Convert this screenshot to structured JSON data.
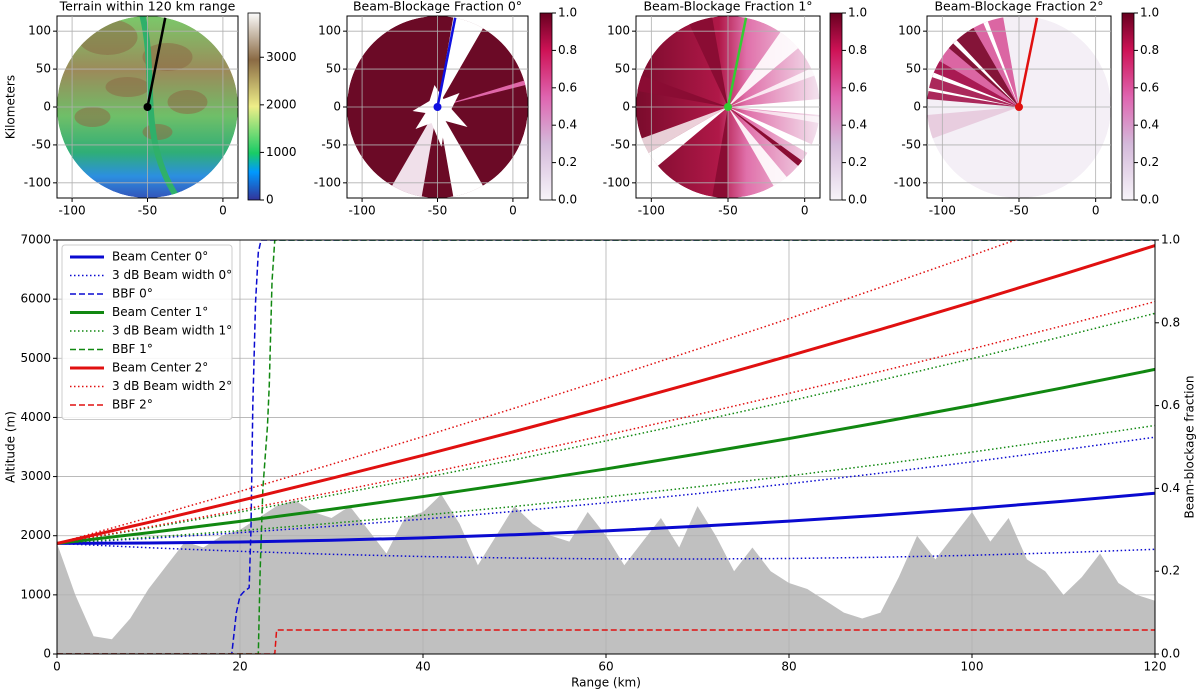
{
  "chart_data": [
    {
      "type": "map",
      "title": "Terrain within 120 km range",
      "ylabel": "Kilometers",
      "xlim": [
        -110,
        10
      ],
      "ylim": [
        -120,
        120
      ],
      "xticks": [
        -100,
        -50,
        0
      ],
      "yticks": [
        -100,
        -50,
        0,
        50,
        100
      ],
      "grid": true,
      "radar": [
        -50,
        0
      ],
      "ray_end": [
        -38,
        120
      ],
      "ray_color": "#000000",
      "colormap": "terrain",
      "colorbar": {
        "lim": [
          0,
          3930
        ],
        "ticks": [
          0,
          1000,
          2000,
          3000
        ]
      }
    },
    {
      "type": "map",
      "title": "Beam-Blockage Fraction 0°",
      "xlim": [
        -110,
        10
      ],
      "ylim": [
        -120,
        120
      ],
      "xticks": [
        -100,
        -50,
        0
      ],
      "yticks": [
        -100,
        -50,
        0,
        50,
        100
      ],
      "grid": true,
      "radar": [
        -50,
        0
      ],
      "ray_end": [
        -38,
        120
      ],
      "ray_color": "#1010e0",
      "colormap": "PuRd",
      "colorbar": {
        "lim": [
          0,
          1
        ],
        "ticks": [
          {
            "value": 0,
            "label": "0.0"
          },
          {
            "value": 0.2,
            "label": "0.2"
          },
          {
            "value": 0.4,
            "label": "0.4"
          },
          {
            "value": 0.6,
            "label": "0.6"
          },
          {
            "value": 0.8,
            "label": "0.8"
          },
          {
            "value": 1,
            "label": "1.0"
          }
        ]
      }
    },
    {
      "type": "map",
      "title": "Beam-Blockage Fraction 1°",
      "xlim": [
        -110,
        10
      ],
      "ylim": [
        -120,
        120
      ],
      "xticks": [
        -100,
        -50,
        0
      ],
      "yticks": [
        -100,
        -50,
        0,
        50,
        100
      ],
      "grid": true,
      "radar": [
        -50,
        0
      ],
      "ray_end": [
        -38,
        120
      ],
      "ray_color": "#33cc33",
      "colormap": "PuRd",
      "colorbar": {
        "lim": [
          0,
          1
        ],
        "ticks": [
          {
            "value": 0,
            "label": "0.0"
          },
          {
            "value": 0.2,
            "label": "0.2"
          },
          {
            "value": 0.4,
            "label": "0.4"
          },
          {
            "value": 0.6,
            "label": "0.6"
          },
          {
            "value": 0.8,
            "label": "0.8"
          },
          {
            "value": 1,
            "label": "1.0"
          }
        ]
      }
    },
    {
      "type": "map",
      "title": "Beam-Blockage Fraction 2°",
      "xlim": [
        -110,
        10
      ],
      "ylim": [
        -120,
        120
      ],
      "xticks": [
        -100,
        -50,
        0
      ],
      "yticks": [
        -100,
        -50,
        0,
        50,
        100
      ],
      "grid": true,
      "radar": [
        -50,
        0
      ],
      "ray_end": [
        -38,
        120
      ],
      "ray_color": "#e01010",
      "colormap": "PuRd",
      "colorbar": {
        "lim": [
          0,
          1
        ],
        "ticks": [
          {
            "value": 0,
            "label": "0.0"
          },
          {
            "value": 0.2,
            "label": "0.2"
          },
          {
            "value": 0.4,
            "label": "0.4"
          },
          {
            "value": 0.6,
            "label": "0.6"
          },
          {
            "value": 0.8,
            "label": "0.8"
          },
          {
            "value": 1,
            "label": "1.0"
          }
        ]
      }
    },
    {
      "type": "line",
      "xlabel": "Range (km)",
      "ylabel": "Altitude (m)",
      "y2label": "Beam-blockage fraction",
      "xlim": [
        0,
        120
      ],
      "ylim": [
        0,
        7000
      ],
      "y2lim": [
        0,
        1
      ],
      "xticks": [
        0,
        20,
        40,
        60,
        80,
        100,
        120
      ],
      "yticks": [
        0,
        1000,
        2000,
        3000,
        4000,
        5000,
        6000,
        7000
      ],
      "y2ticks": [
        {
          "value": 0,
          "label": "0.0"
        },
        {
          "value": 0.2,
          "label": "0.2"
        },
        {
          "value": 0.4,
          "label": "0.4"
        },
        {
          "value": 0.6,
          "label": "0.6"
        },
        {
          "value": 0.8,
          "label": "0.8"
        },
        {
          "value": 1,
          "label": "1.0"
        }
      ],
      "grid": true,
      "legend": "upper-left",
      "x": [
        0,
        10,
        20,
        30,
        40,
        50,
        60,
        70,
        80,
        90,
        100,
        110,
        120
      ],
      "terrain": {
        "color": "#c0c0c0",
        "x": [
          0,
          2,
          4,
          6,
          8,
          10,
          12,
          14,
          16,
          18,
          20,
          22,
          24,
          26,
          28,
          30,
          32,
          34,
          36,
          38,
          40,
          42,
          44,
          46,
          48,
          50,
          52,
          54,
          56,
          58,
          60,
          62,
          64,
          66,
          68,
          70,
          72,
          74,
          76,
          78,
          80,
          82,
          84,
          86,
          88,
          90,
          92,
          94,
          96,
          98,
          100,
          102,
          104,
          106,
          108,
          110,
          112,
          114,
          116,
          118,
          120
        ],
        "values": [
          1870,
          1000,
          300,
          250,
          600,
          1100,
          1500,
          1900,
          1800,
          2000,
          2100,
          2300,
          2500,
          2600,
          2400,
          2300,
          2500,
          2100,
          1700,
          2300,
          2400,
          2700,
          2200,
          1500,
          2000,
          2500,
          2200,
          2000,
          1900,
          2400,
          2000,
          1500,
          1900,
          2300,
          1800,
          2500,
          2000,
          1400,
          1800,
          1400,
          1200,
          1100,
          900,
          700,
          600,
          700,
          1300,
          2000,
          1600,
          2000,
          2400,
          1900,
          2300,
          1600,
          1400,
          1000,
          1300,
          1700,
          1200,
          1000,
          900
        ]
      },
      "series": [
        {
          "name": "Beam Center 0°",
          "color": "#0a0ad0",
          "style": "solid",
          "values": [
            1870,
            1876,
            1894,
            1923,
            1964,
            2017,
            2082,
            2159,
            2247,
            2347,
            2459,
            2583,
            2718
          ]
        },
        {
          "name": "3 dB Beam width 0°",
          "color": "#0a0ad0",
          "style": "dotted",
          "values": [
            1870,
            1797,
            1736,
            1686,
            1648,
            1622,
            1608,
            1606,
            1615,
            1636,
            1669,
            1714,
            1770
          ],
          "values_upper": [
            1870,
            1955,
            2052,
            2160,
            2280,
            2412,
            2556,
            2712,
            2879,
            3058,
            3249,
            3452,
            3666
          ]
        },
        {
          "name": "BBF 0°",
          "color": "#0a0ad0",
          "style": "dashed",
          "axis": "y2",
          "x": [
            0,
            19.1,
            19.6,
            20.0,
            20.4,
            21.0,
            21.2,
            21.4,
            21.7,
            22.0,
            22.3,
            120
          ],
          "values": [
            0,
            0,
            0.1,
            0.14,
            0.15,
            0.16,
            0.3,
            0.6,
            0.85,
            0.97,
            1,
            1
          ]
        },
        {
          "name": "Beam Center 1°",
          "color": "#118811",
          "style": "solid",
          "values": [
            1870,
            2051,
            2243,
            2447,
            2662,
            2890,
            3129,
            3381,
            3643,
            3918,
            4204,
            4503,
            4812
          ]
        },
        {
          "name": "3 dB Beam width 1°",
          "color": "#118811",
          "style": "dotted",
          "values": [
            1870,
            1972,
            2085,
            2210,
            2346,
            2495,
            2655,
            2828,
            3011,
            3207,
            3414,
            3634,
            3864
          ],
          "values_upper": [
            1870,
            2130,
            2401,
            2684,
            2978,
            3285,
            3603,
            3934,
            4275,
            4629,
            4994,
            5372,
            5760
          ]
        },
        {
          "name": "BBF 1°",
          "color": "#118811",
          "style": "dashed",
          "axis": "y2",
          "x": [
            0,
            22.0,
            22.2,
            22.5,
            23.0,
            23.2,
            23.5,
            23.8,
            120
          ],
          "values": [
            0,
            0,
            0.2,
            0.4,
            0.55,
            0.65,
            0.9,
            1,
            1
          ]
        },
        {
          "name": "Beam Center 2°",
          "color": "#e01010",
          "style": "solid",
          "values": [
            1870,
            2225,
            2592,
            2970,
            3360,
            3762,
            4176,
            4602,
            5039,
            5488,
            5949,
            6422,
            6906
          ]
        },
        {
          "name": "3 dB Beam width 2°",
          "color": "#e01010",
          "style": "dotted",
          "values": [
            1870,
            2146,
            2434,
            2733,
            3044,
            3367,
            3702,
            4049,
            4407,
            4777,
            5159,
            5553,
            5958
          ],
          "values_upper": [
            1870,
            2304,
            2750,
            3207,
            3676,
            4157,
            4650,
            5155,
            5671,
            6199,
            6739,
            7291,
            7854
          ]
        },
        {
          "name": "BBF 2°",
          "color": "#e01010",
          "style": "dashed",
          "axis": "y2",
          "x": [
            0,
            23.8,
            24.0,
            120
          ],
          "values": [
            0,
            0,
            0.058,
            0.058
          ]
        }
      ]
    }
  ]
}
